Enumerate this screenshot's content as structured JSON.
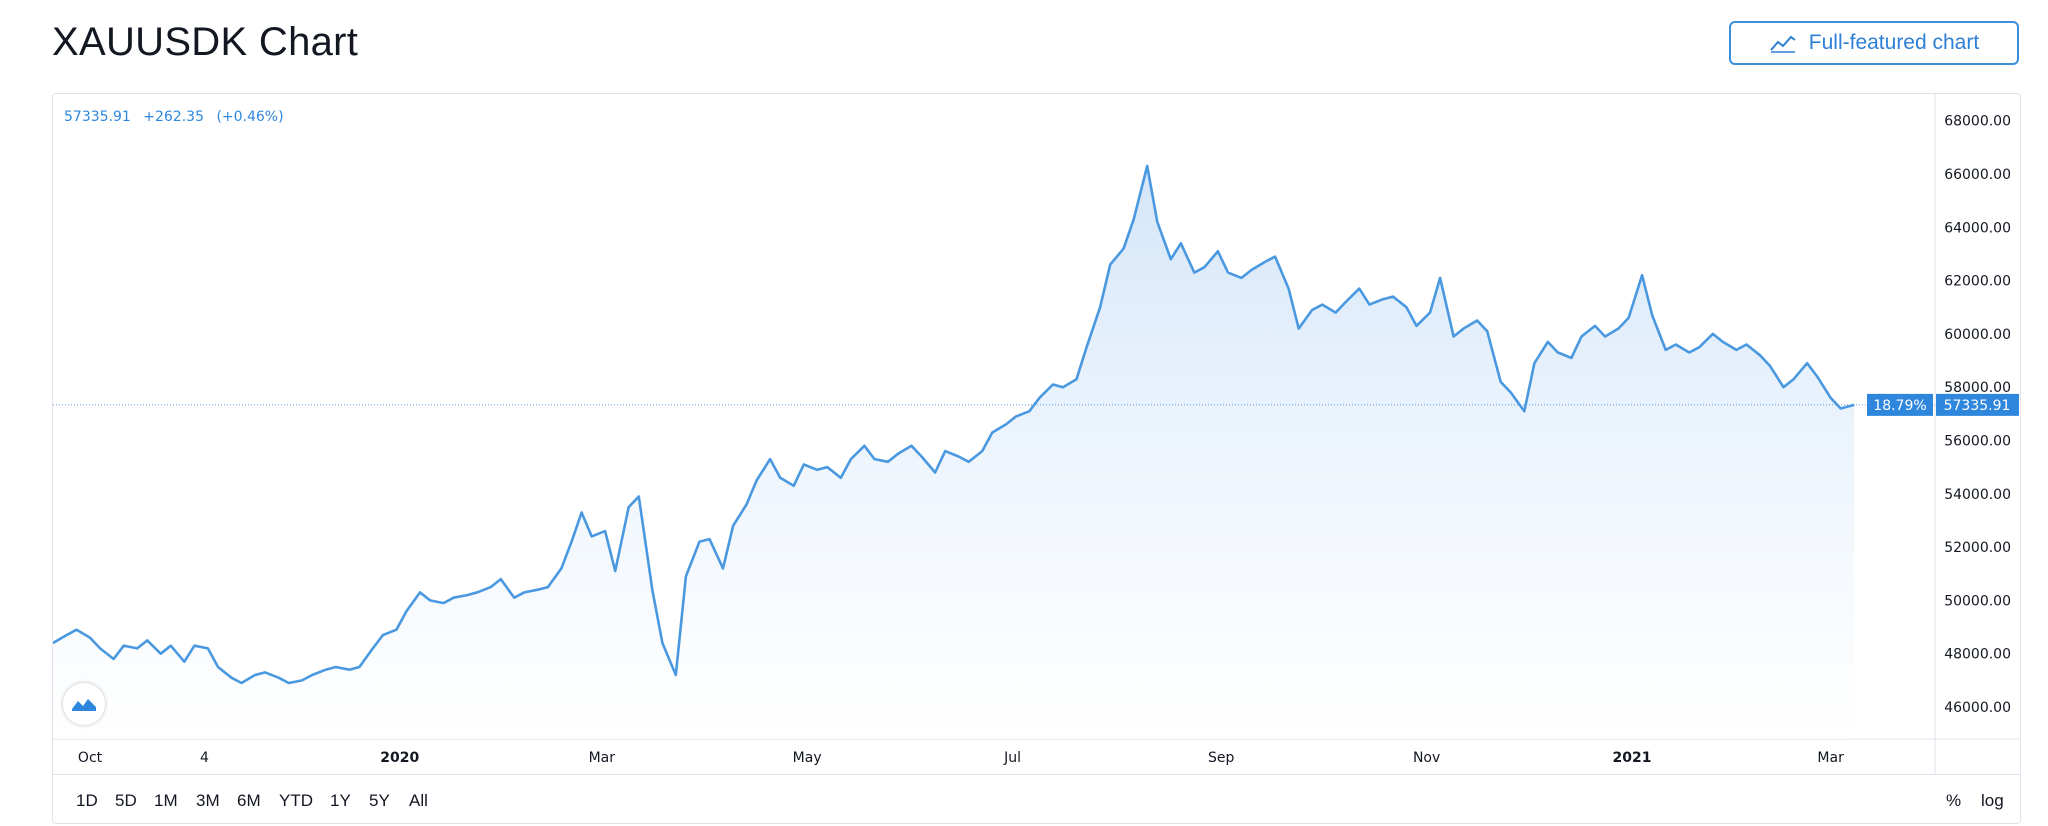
{
  "header": {
    "title": "XAUUSDK Chart",
    "full_chart_label": "Full-featured chart"
  },
  "legend": {
    "last": "57335.91",
    "change": "+262.35",
    "change_pct": "(+0.46%)"
  },
  "bottom_bar": {
    "ranges": [
      "1D",
      "5D",
      "1M",
      "3M",
      "6M",
      "YTD",
      "1Y",
      "5Y",
      "All"
    ],
    "percent_label": "%",
    "log_label": "log"
  },
  "colors": {
    "line": "#4a98e0",
    "accent": "#2e87dd",
    "fill_top": "#cfe3f8",
    "fill_bottom": "#ffffff"
  },
  "chart_data": {
    "type": "area",
    "title": "",
    "xlabel": "",
    "ylabel": "",
    "ylim": [
      44800,
      69000
    ],
    "y_ticks": [
      "46000.00",
      "48000.00",
      "50000.00",
      "52000.00",
      "54000.00",
      "56000.00",
      "58000.00",
      "60000.00",
      "62000.00",
      "64000.00",
      "66000.00",
      "68000.00"
    ],
    "x_ticks": [
      {
        "label": "Oct",
        "date": "2019-10-01",
        "bold": false
      },
      {
        "label": "4",
        "date": "2019-11-04",
        "bold": false
      },
      {
        "label": "2020",
        "date": "2020-01-01",
        "bold": true
      },
      {
        "label": "Mar",
        "date": "2020-03-01",
        "bold": false
      },
      {
        "label": "May",
        "date": "2020-05-01",
        "bold": false
      },
      {
        "label": "Jul",
        "date": "2020-07-01",
        "bold": false
      },
      {
        "label": "Sep",
        "date": "2020-09-01",
        "bold": false
      },
      {
        "label": "Nov",
        "date": "2020-11-01",
        "bold": false
      },
      {
        "label": "2021",
        "date": "2021-01-01",
        "bold": true
      },
      {
        "label": "Mar",
        "date": "2021-03-01",
        "bold": false
      }
    ],
    "x_range": [
      "2019-09-20",
      "2021-04-01"
    ],
    "last_value": 57335.91,
    "last_value_label": "57335.91",
    "pct_label": "18.79%",
    "series": [
      {
        "values": [
          [
            "2019-09-20",
            48400
          ],
          [
            "2019-09-24",
            48700
          ],
          [
            "2019-09-27",
            48900
          ],
          [
            "2019-10-01",
            48600
          ],
          [
            "2019-10-04",
            48200
          ],
          [
            "2019-10-08",
            47800
          ],
          [
            "2019-10-11",
            48300
          ],
          [
            "2019-10-15",
            48200
          ],
          [
            "2019-10-18",
            48500
          ],
          [
            "2019-10-22",
            48000
          ],
          [
            "2019-10-25",
            48300
          ],
          [
            "2019-10-29",
            47700
          ],
          [
            "2019-11-01",
            48300
          ],
          [
            "2019-11-05",
            48200
          ],
          [
            "2019-11-08",
            47500
          ],
          [
            "2019-11-12",
            47100
          ],
          [
            "2019-11-15",
            46900
          ],
          [
            "2019-11-19",
            47200
          ],
          [
            "2019-11-22",
            47300
          ],
          [
            "2019-11-26",
            47100
          ],
          [
            "2019-11-29",
            46900
          ],
          [
            "2019-12-03",
            47000
          ],
          [
            "2019-12-06",
            47200
          ],
          [
            "2019-12-10",
            47400
          ],
          [
            "2019-12-13",
            47500
          ],
          [
            "2019-12-17",
            47400
          ],
          [
            "2019-12-20",
            47500
          ],
          [
            "2019-12-24",
            48200
          ],
          [
            "2019-12-27",
            48700
          ],
          [
            "2019-12-31",
            48900
          ],
          [
            "2020-01-03",
            49600
          ],
          [
            "2020-01-07",
            50300
          ],
          [
            "2020-01-10",
            50000
          ],
          [
            "2020-01-14",
            49900
          ],
          [
            "2020-01-17",
            50100
          ],
          [
            "2020-01-21",
            50200
          ],
          [
            "2020-01-24",
            50300
          ],
          [
            "2020-01-28",
            50500
          ],
          [
            "2020-01-31",
            50800
          ],
          [
            "2020-02-04",
            50100
          ],
          [
            "2020-02-07",
            50300
          ],
          [
            "2020-02-11",
            50400
          ],
          [
            "2020-02-14",
            50500
          ],
          [
            "2020-02-18",
            51200
          ],
          [
            "2020-02-21",
            52200
          ],
          [
            "2020-02-24",
            53300
          ],
          [
            "2020-02-27",
            52400
          ],
          [
            "2020-03-02",
            52600
          ],
          [
            "2020-03-05",
            51100
          ],
          [
            "2020-03-09",
            53500
          ],
          [
            "2020-03-12",
            53900
          ],
          [
            "2020-03-16",
            50400
          ],
          [
            "2020-03-19",
            48400
          ],
          [
            "2020-03-23",
            47200
          ],
          [
            "2020-03-26",
            50900
          ],
          [
            "2020-03-30",
            52200
          ],
          [
            "2020-04-02",
            52300
          ],
          [
            "2020-04-06",
            51200
          ],
          [
            "2020-04-09",
            52800
          ],
          [
            "2020-04-13",
            53600
          ],
          [
            "2020-04-16",
            54500
          ],
          [
            "2020-04-20",
            55300
          ],
          [
            "2020-04-23",
            54600
          ],
          [
            "2020-04-27",
            54300
          ],
          [
            "2020-04-30",
            55100
          ],
          [
            "2020-05-04",
            54900
          ],
          [
            "2020-05-07",
            55000
          ],
          [
            "2020-05-11",
            54600
          ],
          [
            "2020-05-14",
            55300
          ],
          [
            "2020-05-18",
            55800
          ],
          [
            "2020-05-21",
            55300
          ],
          [
            "2020-05-25",
            55200
          ],
          [
            "2020-05-28",
            55500
          ],
          [
            "2020-06-01",
            55800
          ],
          [
            "2020-06-04",
            55400
          ],
          [
            "2020-06-08",
            54800
          ],
          [
            "2020-06-11",
            55600
          ],
          [
            "2020-06-15",
            55400
          ],
          [
            "2020-06-18",
            55200
          ],
          [
            "2020-06-22",
            55600
          ],
          [
            "2020-06-25",
            56300
          ],
          [
            "2020-06-29",
            56600
          ],
          [
            "2020-07-02",
            56900
          ],
          [
            "2020-07-06",
            57100
          ],
          [
            "2020-07-09",
            57600
          ],
          [
            "2020-07-13",
            58100
          ],
          [
            "2020-07-16",
            58000
          ],
          [
            "2020-07-20",
            58300
          ],
          [
            "2020-07-23",
            59500
          ],
          [
            "2020-07-27",
            61000
          ],
          [
            "2020-07-30",
            62600
          ],
          [
            "2020-08-03",
            63200
          ],
          [
            "2020-08-06",
            64300
          ],
          [
            "2020-08-10",
            66300
          ],
          [
            "2020-08-13",
            64200
          ],
          [
            "2020-08-17",
            62800
          ],
          [
            "2020-08-20",
            63400
          ],
          [
            "2020-08-24",
            62300
          ],
          [
            "2020-08-27",
            62500
          ],
          [
            "2020-08-31",
            63100
          ],
          [
            "2020-09-03",
            62300
          ],
          [
            "2020-09-07",
            62100
          ],
          [
            "2020-09-10",
            62400
          ],
          [
            "2020-09-14",
            62700
          ],
          [
            "2020-09-17",
            62900
          ],
          [
            "2020-09-21",
            61700
          ],
          [
            "2020-09-24",
            60200
          ],
          [
            "2020-09-28",
            60900
          ],
          [
            "2020-10-01",
            61100
          ],
          [
            "2020-10-05",
            60800
          ],
          [
            "2020-10-08",
            61200
          ],
          [
            "2020-10-12",
            61700
          ],
          [
            "2020-10-15",
            61100
          ],
          [
            "2020-10-19",
            61300
          ],
          [
            "2020-10-22",
            61400
          ],
          [
            "2020-10-26",
            61000
          ],
          [
            "2020-10-29",
            60300
          ],
          [
            "2020-11-02",
            60800
          ],
          [
            "2020-11-05",
            62100
          ],
          [
            "2020-11-09",
            59900
          ],
          [
            "2020-11-12",
            60200
          ],
          [
            "2020-11-16",
            60500
          ],
          [
            "2020-11-19",
            60100
          ],
          [
            "2020-11-23",
            58200
          ],
          [
            "2020-11-26",
            57800
          ],
          [
            "2020-11-30",
            57100
          ],
          [
            "2020-12-03",
            58900
          ],
          [
            "2020-12-07",
            59700
          ],
          [
            "2020-12-10",
            59300
          ],
          [
            "2020-12-14",
            59100
          ],
          [
            "2020-12-17",
            59900
          ],
          [
            "2020-12-21",
            60300
          ],
          [
            "2020-12-24",
            59900
          ],
          [
            "2020-12-28",
            60200
          ],
          [
            "2020-12-31",
            60600
          ],
          [
            "2021-01-04",
            62200
          ],
          [
            "2021-01-07",
            60700
          ],
          [
            "2021-01-11",
            59400
          ],
          [
            "2021-01-14",
            59600
          ],
          [
            "2021-01-18",
            59300
          ],
          [
            "2021-01-21",
            59500
          ],
          [
            "2021-01-25",
            60000
          ],
          [
            "2021-01-28",
            59700
          ],
          [
            "2021-02-01",
            59400
          ],
          [
            "2021-02-04",
            59600
          ],
          [
            "2021-02-08",
            59200
          ],
          [
            "2021-02-11",
            58800
          ],
          [
            "2021-02-15",
            58000
          ],
          [
            "2021-02-18",
            58300
          ],
          [
            "2021-02-22",
            58900
          ],
          [
            "2021-02-25",
            58400
          ],
          [
            "2021-03-01",
            57600
          ],
          [
            "2021-03-04",
            57200
          ],
          [
            "2021-03-08",
            57335.91
          ]
        ]
      }
    ]
  }
}
